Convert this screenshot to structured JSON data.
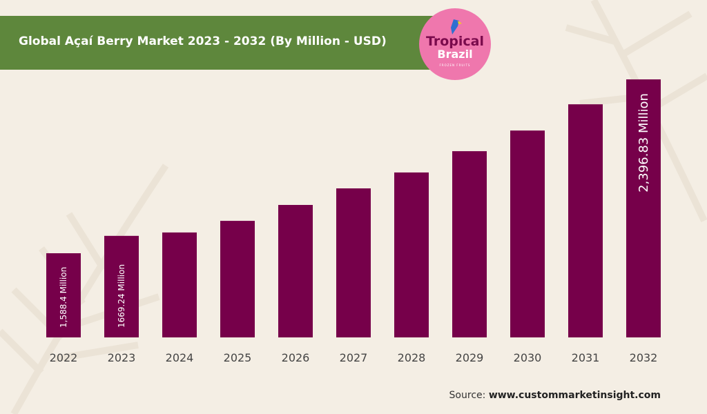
{
  "title": "Global Açaí Berry Market 2023 - 2032 (By Million - USD)",
  "logo": {
    "line1": "Tropical",
    "line2": "Brazil",
    "line3": "FROZEN FRUITS"
  },
  "source": {
    "label": "Source:",
    "site": "www.custommarketinsight.com"
  },
  "colors": {
    "bar": "#76004a",
    "title_band": "#5e873c",
    "background": "#f4eee4",
    "logo": "#ef77ad"
  },
  "chart_data": {
    "type": "bar",
    "title": "Global Açaí Berry Market 2023 - 2032 (By Million - USD)",
    "categories": [
      "2022",
      "2023",
      "2024",
      "2025",
      "2026",
      "2027",
      "2028",
      "2029",
      "2030",
      "2031",
      "2032"
    ],
    "values": [
      1588.4,
      1669.24,
      1685,
      1739,
      1813,
      1890,
      1964,
      2063,
      2159,
      2281,
      2396.83
    ],
    "data_labels": [
      "1,588.4 Million",
      "1669.24 Million",
      "",
      "",
      "",
      "",
      "",
      "",
      "",
      "",
      "2,396.83 Million"
    ],
    "ylim": [
      1197,
      2397
    ],
    "grid": false,
    "xlabel": "",
    "ylabel": ""
  }
}
